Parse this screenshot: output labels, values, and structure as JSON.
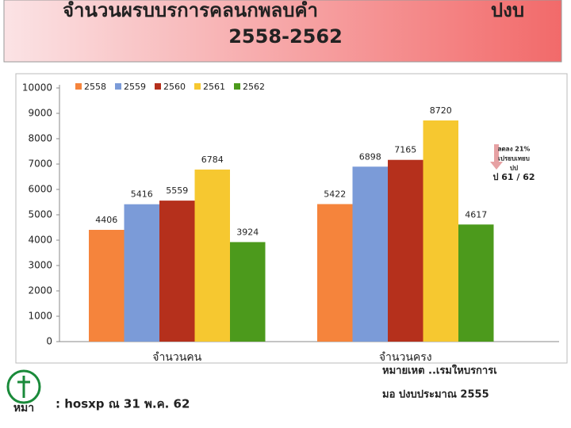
{
  "header": {
    "title_line1": "จำนวนผรบบรการคลนกพลบคำ",
    "title_right": "ปงบ",
    "title_line2": "2558-2562"
  },
  "chart_data": {
    "type": "bar",
    "categories": [
      "จำนวนคน",
      "จำนวนครง"
    ],
    "series": [
      {
        "name": "2558",
        "color": "#f5843c",
        "values": [
          4406,
          5422
        ]
      },
      {
        "name": "2559",
        "color": "#7b9bd8",
        "values": [
          5416,
          6898
        ]
      },
      {
        "name": "2560",
        "color": "#b5301c",
        "values": [
          5559,
          7165
        ]
      },
      {
        "name": "2561",
        "color": "#f6c830",
        "values": [
          6784,
          8720
        ]
      },
      {
        "name": "2562",
        "color": "#4c9a1c",
        "values": [
          3924,
          4617
        ]
      }
    ],
    "ylim": [
      0,
      10000
    ],
    "yticks": [
      0,
      1000,
      2000,
      3000,
      4000,
      5000,
      6000,
      7000,
      8000,
      9000,
      10000
    ],
    "legend": "top",
    "annotation": [
      "ลดลง 21%",
      "เปรยบเทยบ",
      "ปป",
      "ป 61 / 62"
    ]
  },
  "footer": {
    "logo_text": "หมา",
    "source": ": hosxp ณ 31 พ.ค. 62",
    "note": [
      "หมายเหต ..เรมใหบรการเ",
      "มอ ปงบประมาณ 2555"
    ]
  }
}
